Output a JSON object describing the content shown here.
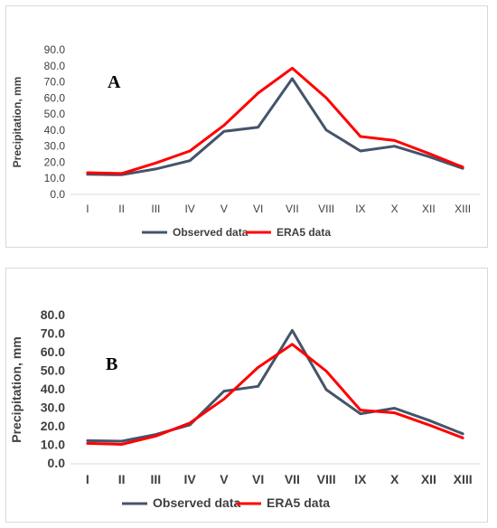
{
  "chart_data": [
    {
      "type": "line",
      "panel_label": "A",
      "categories": [
        "I",
        "II",
        "III",
        "IV",
        "V",
        "VI",
        "VII",
        "VIII",
        "IX",
        "X",
        "XII",
        "XIII"
      ],
      "series": [
        {
          "name": "Observed data",
          "color": "#44546A",
          "values": [
            12.5,
            12.2,
            15.8,
            21.0,
            39.2,
            41.8,
            72.0,
            40.0,
            27.0,
            30.0,
            23.5,
            16.2
          ]
        },
        {
          "name": "ERA5 data",
          "color": "#FF0000",
          "values": [
            13.5,
            13.0,
            19.5,
            27.0,
            43.0,
            63.0,
            78.5,
            60.0,
            36.0,
            33.5,
            25.5,
            17.0
          ]
        }
      ],
      "ylabel": "Precipitation, mm",
      "ylim": [
        0,
        90
      ],
      "yticks": [
        "0.0",
        "10.0",
        "20.0",
        "30.0",
        "40.0",
        "50.0",
        "60.0",
        "70.0",
        "80.0",
        "90.0"
      ],
      "legend": "bottom"
    },
    {
      "type": "line",
      "panel_label": "B",
      "categories": [
        "I",
        "II",
        "III",
        "IV",
        "V",
        "VI",
        "VII",
        "VIII",
        "IX",
        "X",
        "XII",
        "XIII"
      ],
      "series": [
        {
          "name": "Observed data",
          "color": "#44546A",
          "values": [
            12.5,
            12.2,
            15.8,
            21.0,
            39.2,
            41.8,
            72.0,
            40.0,
            27.0,
            30.0,
            23.5,
            16.2
          ]
        },
        {
          "name": "ERA5 data",
          "color": "#FF0000",
          "values": [
            11.0,
            10.5,
            15.0,
            22.0,
            35.0,
            52.0,
            64.5,
            50.0,
            29.0,
            27.5,
            21.0,
            14.0
          ]
        }
      ],
      "ylabel": "Precipitation, mm",
      "ylim": [
        0,
        80
      ],
      "yticks": [
        "0.0",
        "10.0",
        "20.0",
        "30.0",
        "40.0",
        "50.0",
        "60.0",
        "70.0",
        "80.0"
      ],
      "legend": "bottom"
    }
  ]
}
